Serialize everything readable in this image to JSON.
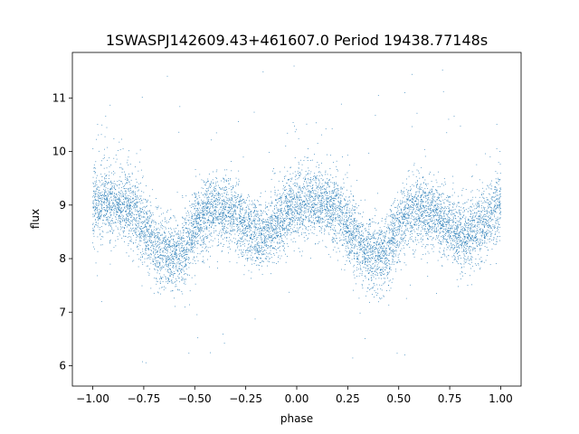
{
  "chart_data": {
    "type": "scatter",
    "title": "1SWASPJ142609.43+461607.0 Period 19438.77148s",
    "xlabel": "phase",
    "ylabel": "flux",
    "xlim": [
      -1.1,
      1.1
    ],
    "ylim": [
      5.62,
      11.85
    ],
    "xticks": [
      -1.0,
      -0.75,
      -0.5,
      -0.25,
      0.0,
      0.25,
      0.5,
      0.75,
      1.0
    ],
    "xtick_labels": [
      "−1.00",
      "−0.75",
      "−0.50",
      "−0.25",
      "0.00",
      "0.25",
      "0.50",
      "0.75",
      "1.00"
    ],
    "yticks": [
      6,
      7,
      8,
      9,
      10,
      11
    ],
    "ytick_labels": [
      "6",
      "7",
      "8",
      "9",
      "10",
      "11"
    ],
    "grid": false,
    "color": "#1f77b4",
    "series": [
      {
        "x": [
          -1.0,
          -0.95,
          -0.9,
          -0.85,
          -0.8,
          -0.75,
          -0.7,
          -0.65,
          -0.6,
          -0.55,
          -0.5,
          -0.45,
          -0.4,
          -0.35,
          -0.3,
          -0.25,
          -0.2,
          -0.15,
          -0.1,
          -0.05,
          0.0,
          0.05,
          0.1,
          0.15,
          0.2,
          0.25,
          0.3,
          0.35,
          0.4,
          0.45,
          0.5,
          0.55,
          0.6,
          0.65,
          0.7,
          0.75,
          0.8,
          0.85,
          0.9,
          0.95,
          1.0
        ],
        "y": [
          9.0,
          9.05,
          9.05,
          9.0,
          8.9,
          8.6,
          8.25,
          8.1,
          8.05,
          8.15,
          8.6,
          8.85,
          8.9,
          8.85,
          8.8,
          8.6,
          8.45,
          8.45,
          8.6,
          8.85,
          9.0,
          9.05,
          9.05,
          9.0,
          8.9,
          8.6,
          8.25,
          8.1,
          8.05,
          8.15,
          8.6,
          8.85,
          8.9,
          8.85,
          8.8,
          8.6,
          8.45,
          8.45,
          8.6,
          8.85,
          9.0
        ],
        "upper_branch_y": [
          10.1,
          10.15,
          10.1,
          10.0,
          9.7,
          9.3,
          8.9,
          8.6,
          8.5,
          8.5,
          8.7,
          8.85,
          8.9,
          8.85,
          8.8,
          8.7,
          8.8,
          9.1,
          9.6,
          10.0,
          10.1,
          10.15,
          10.1,
          10.0,
          9.7,
          9.3,
          8.9,
          8.6,
          8.5,
          8.5,
          8.7,
          8.85,
          8.9,
          8.85,
          8.8,
          8.7,
          8.8,
          9.1,
          9.6,
          10.0,
          10.1
        ]
      }
    ]
  }
}
